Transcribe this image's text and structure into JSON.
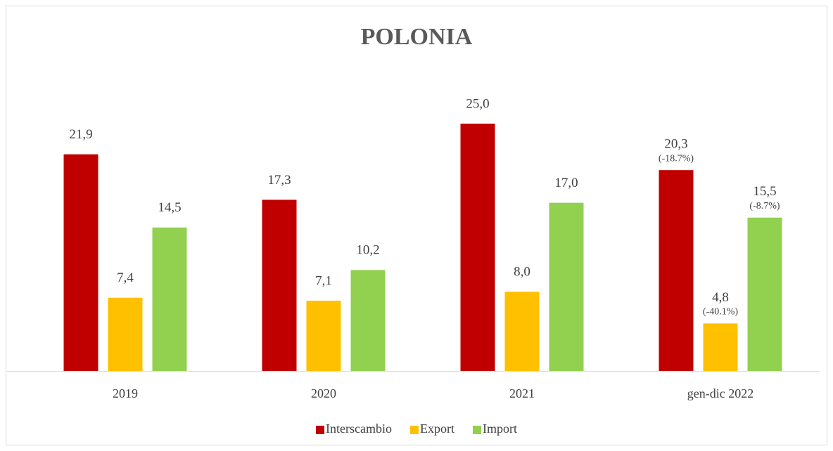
{
  "chart_data": {
    "type": "bar",
    "title": "POLONIA",
    "categories": [
      "2019",
      "2020",
      "2021",
      "gen-dic 2022"
    ],
    "series": [
      {
        "name": "Interscambio",
        "color": "#c00000",
        "values": [
          21.9,
          17.3,
          25.0,
          20.3
        ],
        "value_labels": [
          "21,9",
          "17,3",
          "25,0",
          "20,3"
        ],
        "value_notes": [
          null,
          null,
          null,
          "(-18.7%)"
        ]
      },
      {
        "name": "Export",
        "color": "#ffc000",
        "values": [
          7.4,
          7.1,
          8.0,
          4.8
        ],
        "value_labels": [
          "7,4",
          "7,1",
          "8,0",
          "4,8"
        ],
        "value_notes": [
          null,
          null,
          null,
          "(-40.1%)"
        ]
      },
      {
        "name": "Import",
        "color": "#92d050",
        "values": [
          14.5,
          10.2,
          17.0,
          15.5
        ],
        "value_labels": [
          "14,5",
          "10,2",
          "17,0",
          "15,5"
        ],
        "value_notes": [
          null,
          null,
          null,
          "(-8.7%)"
        ]
      }
    ],
    "legend": "bottom"
  }
}
